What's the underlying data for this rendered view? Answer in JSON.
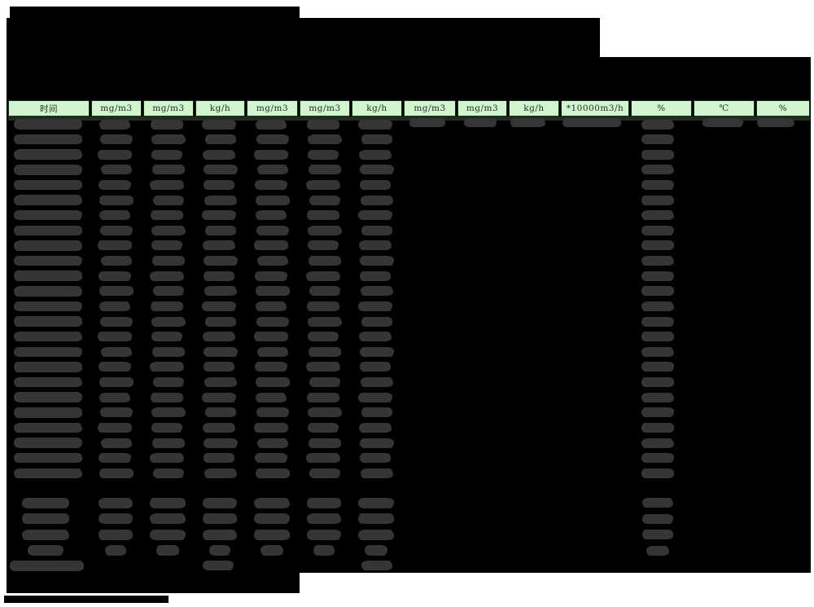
{
  "report": {
    "kind": "hourly-monitoring-report-table",
    "title_redacted": true,
    "info_block_redacted": true,
    "subheader_band_redacted": true,
    "all_values_redacted": true
  },
  "colors": {
    "page_bg": "#ffffff",
    "redaction_black": "#000000",
    "blob_gray": "#353535",
    "header_cell_bg": "#d2f5d0",
    "header_text": "#232d23"
  },
  "table": {
    "columns": [
      {
        "label": "时间"
      },
      {
        "label": "mg/m3"
      },
      {
        "label": "mg/m3"
      },
      {
        "label": "kg/h"
      },
      {
        "label": "mg/m3"
      },
      {
        "label": "mg/m3"
      },
      {
        "label": "kg/h"
      },
      {
        "label": "mg/m3"
      },
      {
        "label": "mg/m3"
      },
      {
        "label": "kg/h"
      },
      {
        "label": "*10000m3/h"
      },
      {
        "label": "%"
      },
      {
        "label": "℃"
      },
      {
        "label": "%"
      }
    ],
    "data_row_count": 24,
    "summary_row_count": 4,
    "footer_row_count": 1
  }
}
